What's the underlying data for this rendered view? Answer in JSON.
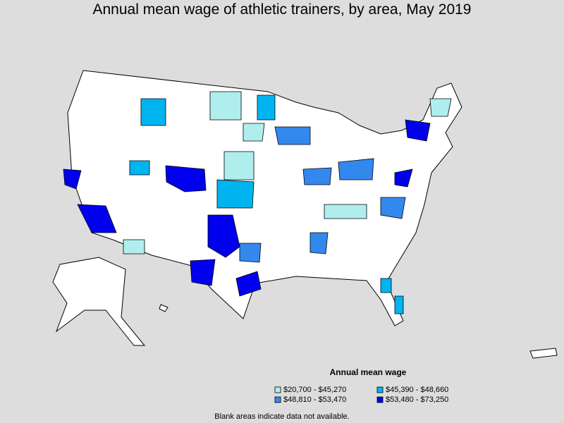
{
  "title": "Annual mean wage of athletic trainers, by area, May 2019",
  "legend": {
    "title": "Annual mean wage",
    "items": [
      {
        "label": "$20,700 - $45,270",
        "color": "#b0eeee"
      },
      {
        "label": "$45,390 - $48,660",
        "color": "#00b4f0"
      },
      {
        "label": "$48,810 - $53,470",
        "color": "#3388ee"
      },
      {
        "label": "$53,480 - $73,250",
        "color": "#0000ee"
      }
    ]
  },
  "footnote": "Blank areas indicate data not available."
}
